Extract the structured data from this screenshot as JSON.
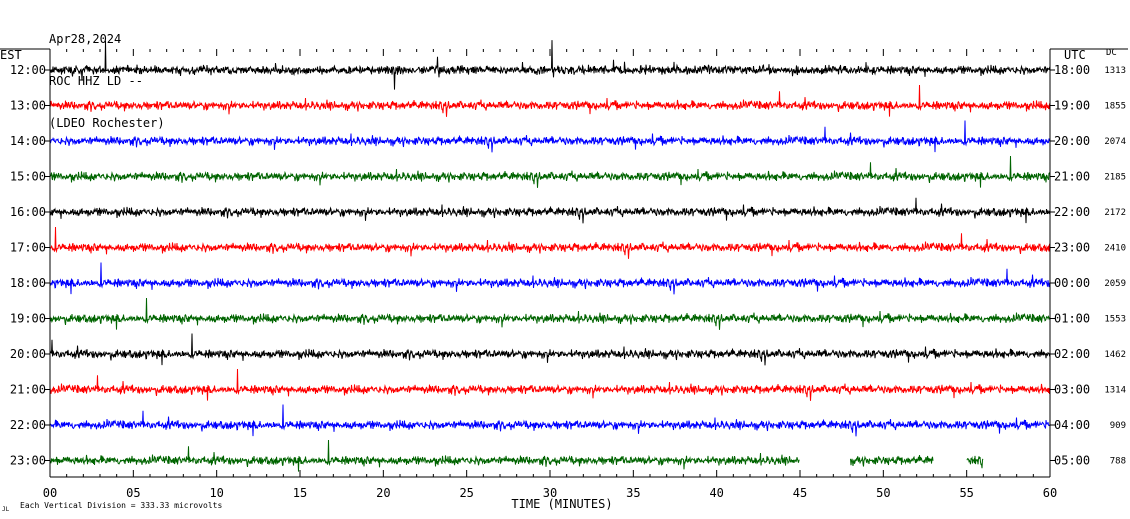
{
  "header": {
    "date": "Apr28,2024",
    "station": "ROC HHZ LD --",
    "network": "(LDEO Rochester)"
  },
  "left_axis_label": "EST",
  "right_axis_label": "UTC",
  "dc_label": "DC",
  "footer": {
    "vertical_division": "Each Vertical Division =  333.33 microvolts",
    "mark": "JL"
  },
  "chart_data": {
    "type": "line",
    "title": "",
    "xlabel": "TIME (MINUTES)",
    "ylabel": "",
    "xlim": [
      0,
      60
    ],
    "x_ticks": [
      "00",
      "05",
      "10",
      "15",
      "20",
      "25",
      "30",
      "35",
      "40",
      "45",
      "50",
      "55",
      "60"
    ],
    "trace_colors": [
      "#000000",
      "#ff0000",
      "#0000ff",
      "#006400"
    ],
    "rows": [
      {
        "est": "12:00",
        "utc": "18:00",
        "dc": "1313"
      },
      {
        "est": "13:00",
        "utc": "19:00",
        "dc": "1855"
      },
      {
        "est": "14:00",
        "utc": "20:00",
        "dc": "2074"
      },
      {
        "est": "15:00",
        "utc": "21:00",
        "dc": "2185"
      },
      {
        "est": "16:00",
        "utc": "22:00",
        "dc": "2172"
      },
      {
        "est": "17:00",
        "utc": "23:00",
        "dc": "2410"
      },
      {
        "est": "18:00",
        "utc": "00:00",
        "dc": "2059"
      },
      {
        "est": "19:00",
        "utc": "01:00",
        "dc": "1553"
      },
      {
        "est": "20:00",
        "utc": "02:00",
        "dc": "1462"
      },
      {
        "est": "21:00",
        "utc": "03:00",
        "dc": "1314"
      },
      {
        "est": "22:00",
        "utc": "04:00",
        "dc": "909"
      },
      {
        "est": "23:00",
        "utc": "05:00",
        "dc": "788"
      }
    ],
    "last_trace_gaps_minutes": [
      [
        45,
        48
      ],
      [
        53,
        55
      ],
      [
        56,
        60
      ]
    ]
  }
}
